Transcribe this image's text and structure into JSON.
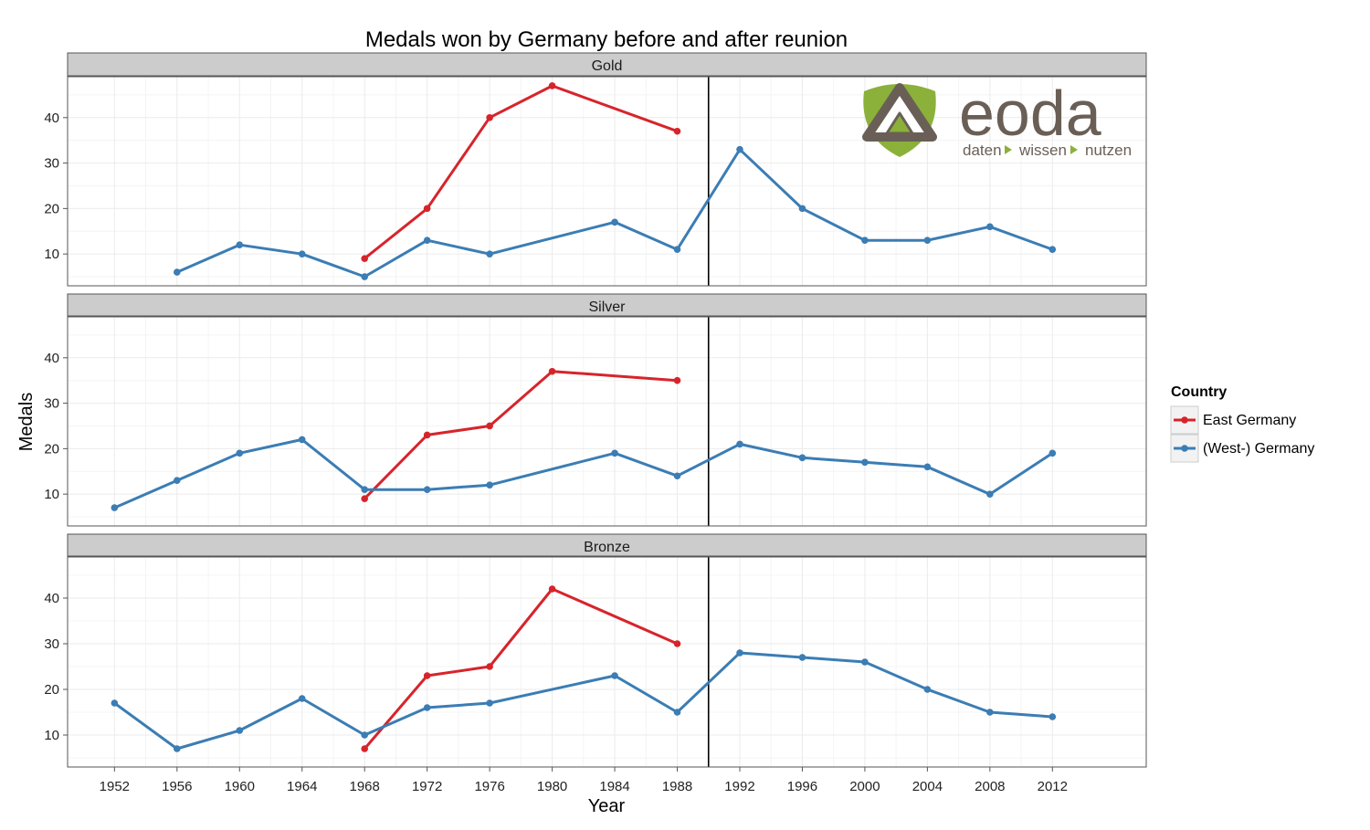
{
  "chart_data": {
    "type": "line",
    "title": "Medals won by Germany before and after reunion",
    "xlabel": "Year",
    "ylabel": "Medals",
    "x_ticks": [
      1952,
      1956,
      1960,
      1964,
      1968,
      1972,
      1976,
      1980,
      1984,
      1988,
      1992,
      1996,
      2000,
      2004,
      2008,
      2012
    ],
    "xlim": [
      1949,
      2018
    ],
    "ylim": [
      3,
      49
    ],
    "y_ticks": [
      10,
      20,
      30,
      40
    ],
    "reference_line_x": 1990,
    "grid": true,
    "legend": {
      "title": "Country",
      "position": "right",
      "entries": [
        {
          "name": "East Germany",
          "color": "#d7242b"
        },
        {
          "name": "(West-) Germany",
          "color": "#3b7db4"
        }
      ]
    },
    "panels": [
      {
        "name": "Gold",
        "series": [
          {
            "name": "East Germany",
            "x": [
              1968,
              1972,
              1976,
              1980,
              1988
            ],
            "values": [
              9,
              20,
              40,
              47,
              37
            ]
          },
          {
            "name": "(West-) Germany",
            "x": [
              1956,
              1960,
              1964,
              1968,
              1972,
              1976,
              1984,
              1988,
              1992,
              1996,
              2000,
              2004,
              2008,
              2012
            ],
            "values": [
              6,
              12,
              10,
              5,
              13,
              10,
              17,
              11,
              33,
              20,
              13,
              13,
              16,
              11
            ]
          }
        ]
      },
      {
        "name": "Silver",
        "series": [
          {
            "name": "East Germany",
            "x": [
              1968,
              1972,
              1976,
              1980,
              1988
            ],
            "values": [
              9,
              23,
              25,
              37,
              35
            ]
          },
          {
            "name": "(West-) Germany",
            "x": [
              1952,
              1956,
              1960,
              1964,
              1968,
              1972,
              1976,
              1984,
              1988,
              1992,
              1996,
              2000,
              2004,
              2008,
              2012
            ],
            "values": [
              7,
              13,
              19,
              22,
              11,
              11,
              12,
              19,
              14,
              21,
              18,
              17,
              16,
              10,
              19
            ]
          }
        ]
      },
      {
        "name": "Bronze",
        "series": [
          {
            "name": "East Germany",
            "x": [
              1968,
              1972,
              1976,
              1980,
              1988
            ],
            "values": [
              7,
              23,
              25,
              42,
              30
            ]
          },
          {
            "name": "(West-) Germany",
            "x": [
              1952,
              1956,
              1960,
              1964,
              1968,
              1972,
              1976,
              1984,
              1988,
              1992,
              1996,
              2000,
              2004,
              2008,
              2012
            ],
            "values": [
              17,
              7,
              11,
              18,
              10,
              16,
              17,
              23,
              15,
              28,
              27,
              26,
              20,
              15,
              14
            ]
          }
        ]
      }
    ]
  },
  "logo": {
    "word": "eoda",
    "tagline": [
      "daten",
      "wissen",
      "nutzen"
    ],
    "colors": {
      "green": "#8bb13a",
      "brown": "#6a5f56"
    }
  }
}
